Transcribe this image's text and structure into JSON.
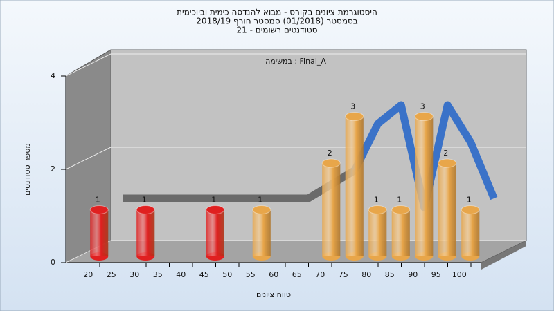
{
  "chart_data": {
    "type": "bar",
    "title_lines": [
      "היסטוגרמת ציונים בקורס - מבוא להנדסה כימית וביוכימית",
      "בסמסטר  (01/2018)  סמסטר חורף 2018/19",
      "סטודנטים רשומים - 21"
    ],
    "annotation": "במשימה : Final_A",
    "y_label": "מספר סטודנטים",
    "x_label": "טווח ציונים",
    "categories": [
      "20",
      "25",
      "30",
      "35",
      "40",
      "45",
      "50",
      "55",
      "60",
      "65",
      "70",
      "75",
      "80",
      "85",
      "90",
      "95",
      "100"
    ],
    "values": [
      1,
      0,
      1,
      0,
      0,
      1,
      0,
      1,
      0,
      0,
      2,
      3,
      1,
      1,
      3,
      2,
      1
    ],
    "colors": [
      "#e02020",
      "#e02020",
      "#e02020",
      "#e02020",
      "#e02020",
      "#e02020",
      "#e02020",
      "#e8a64a",
      "#e8a64a",
      "#e8a64a",
      "#e8a64a",
      "#e8a64a",
      "#e8a64a",
      "#e8a64a",
      "#e8a64a",
      "#e8a64a",
      "#e8a64a"
    ],
    "trend": {
      "values": [
        1.2,
        1.2,
        1.2,
        1.2,
        1.2,
        1.2,
        1.2,
        1.2,
        1.2,
        1.5,
        1.8,
        2.8,
        3.2,
        1.0,
        3.2,
        2.4,
        1.2
      ],
      "colors": [
        "#6a6a6a",
        "#6a6a6a",
        "#6a6a6a",
        "#6a6a6a",
        "#6a6a6a",
        "#6a6a6a",
        "#6a6a6a",
        "#6a6a6a",
        "#6a6a6a",
        "#6a6a6a",
        "#6a6a6a",
        "#3a72c8",
        "#3a72c8",
        "#3a72c8",
        "#3a72c8",
        "#3a72c8",
        "#3a72c8"
      ]
    },
    "ylim": [
      0,
      4
    ],
    "yticks": [
      0,
      2,
      4
    ],
    "grid": true
  }
}
